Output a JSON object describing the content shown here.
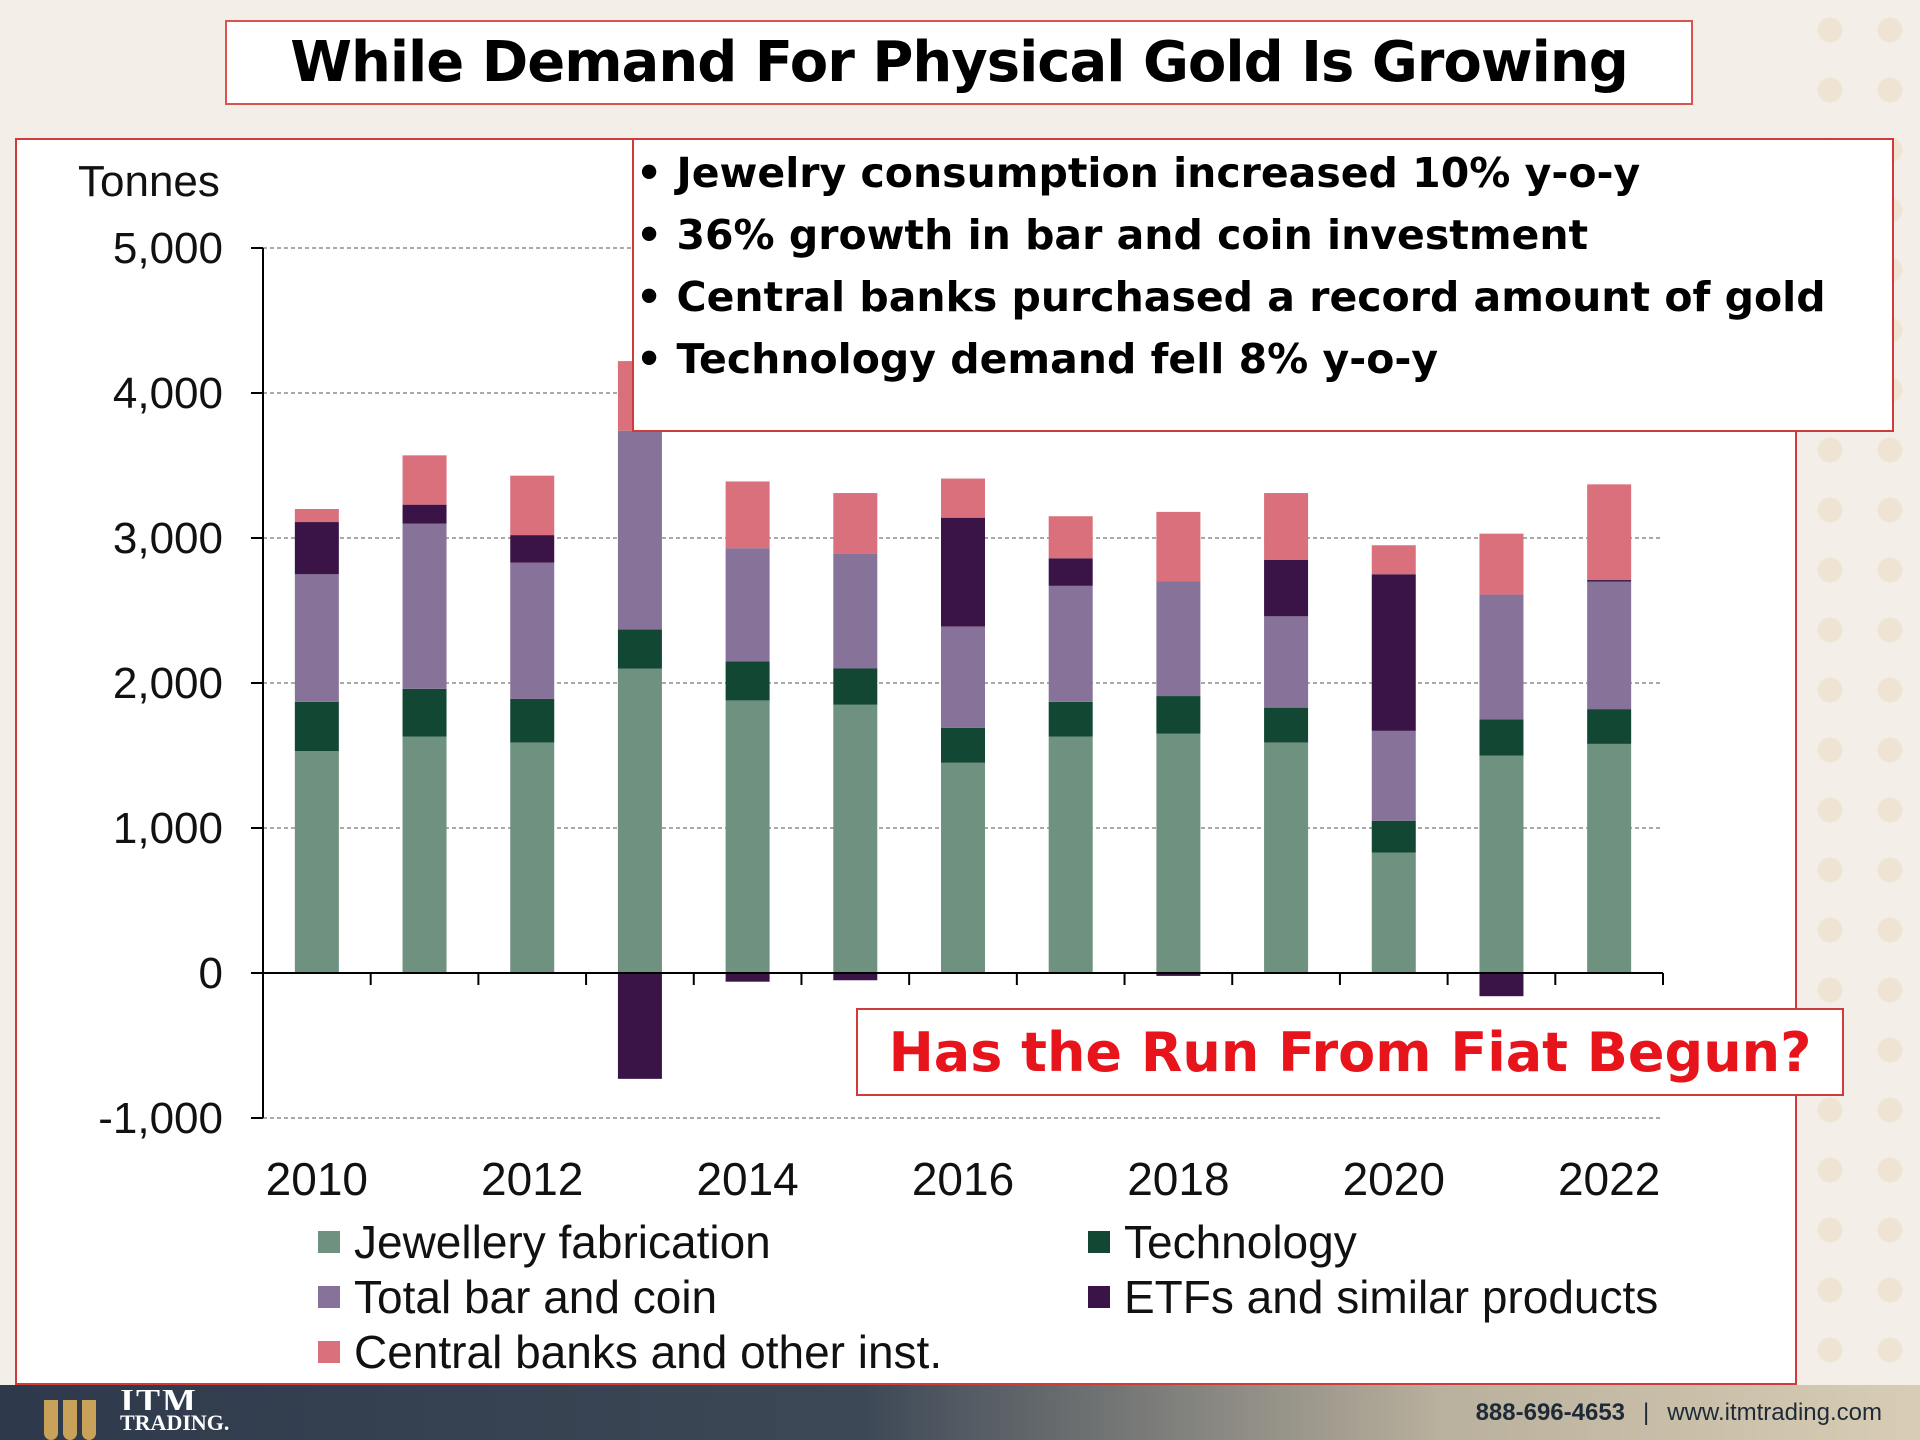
{
  "header": {
    "title": "While Demand For Physical Gold Is Growing"
  },
  "callout": {
    "bullets": [
      "Jewelry consumption increased 10% y-o-y",
      "36% growth in bar and coin investment",
      "Central banks purchased a record amount of gold",
      "Technology demand fell 8% y-o-y"
    ]
  },
  "question": "Has the Run From Fiat Begun?",
  "footer": {
    "brand_top": "ITM",
    "brand_bottom": "TRADING.",
    "phone": "888-696-4653",
    "separator": "|",
    "website": "www.itmtrading.com"
  },
  "chart_data": {
    "type": "bar",
    "stacked": true,
    "ylabel": "Tonnes",
    "ylim": [
      -1000,
      5000
    ],
    "yticks": [
      -1000,
      0,
      1000,
      2000,
      3000,
      4000,
      5000
    ],
    "ytick_labels": [
      "-1,000",
      "0",
      "1,000",
      "2,000",
      "3,000",
      "4,000",
      "5,000"
    ],
    "categories": [
      "2010",
      "2011",
      "2012",
      "2013",
      "2014",
      "2015",
      "2016",
      "2017",
      "2018",
      "2019",
      "2020",
      "2021",
      "2022"
    ],
    "xtick_labels": [
      "2010",
      "",
      "2012",
      "",
      "2014",
      "",
      "2016",
      "",
      "2018",
      "",
      "2020",
      "",
      "2022"
    ],
    "grid": true,
    "legend_placement": "bottom",
    "series": [
      {
        "name": "Jewellery fabrication",
        "color": "#6e9180",
        "values": [
          1530,
          1630,
          1590,
          2100,
          1880,
          1850,
          1450,
          1630,
          1650,
          1590,
          830,
          1500,
          1580
        ]
      },
      {
        "name": "Technology",
        "color": "#124733",
        "values": [
          340,
          330,
          300,
          270,
          270,
          250,
          240,
          240,
          260,
          240,
          220,
          250,
          240
        ]
      },
      {
        "name": "Total bar and coin",
        "color": "#87729a",
        "values": [
          880,
          1140,
          940,
          1370,
          780,
          790,
          700,
          800,
          790,
          630,
          620,
          860,
          880
        ]
      },
      {
        "name": "ETFs and similar products",
        "color": "#3a1446",
        "values": [
          360,
          130,
          190,
          -730,
          -60,
          -50,
          750,
          190,
          -20,
          390,
          1080,
          -160,
          10
        ]
      },
      {
        "name": "Central banks and other inst.",
        "color": "#d9707c",
        "values": [
          90,
          340,
          410,
          480,
          460,
          420,
          270,
          290,
          480,
          460,
          200,
          420,
          660
        ]
      }
    ]
  }
}
